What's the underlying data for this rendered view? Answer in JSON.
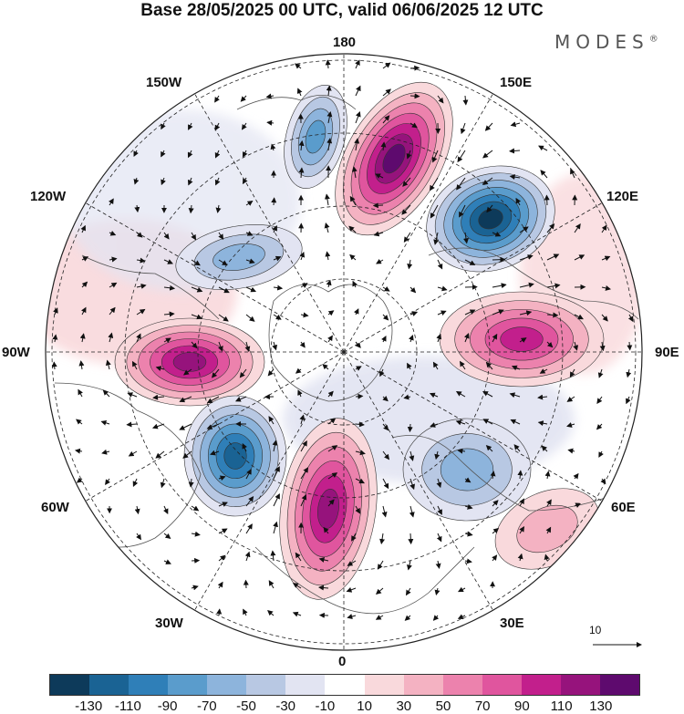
{
  "title": "Base 28/05/2025 00 UTC, valid 06/06/2025 12 UTC",
  "brand": "MODES",
  "brand_mark": "®",
  "longitude_labels": {
    "lon_180": "180",
    "lon_150E": "150E",
    "lon_120E": "120E",
    "lon_90E": "90E",
    "lon_60E": "60E",
    "lon_30E": "30E",
    "lon_0": "0",
    "lon_30W": "30W",
    "lon_60W": "60W",
    "lon_90W": "90W",
    "lon_120W": "120W",
    "lon_150W": "150W"
  },
  "reference_vector": {
    "label": "10"
  },
  "colorbar": {
    "colors": [
      "#0d3a5a",
      "#1a6394",
      "#2f7fb8",
      "#5a9ccc",
      "#8db4dc",
      "#b8c8e3",
      "#e2e4f2",
      "#ffffff",
      "#f9d9dc",
      "#f4b2c2",
      "#ec82ad",
      "#e0559e",
      "#c21f8c",
      "#96137c",
      "#5e0a6e"
    ],
    "ticks": [
      "-130",
      "-110",
      "-90",
      "-70",
      "-50",
      "-30",
      "-10",
      "10",
      "30",
      "50",
      "70",
      "90",
      "110",
      "130"
    ]
  },
  "anomaly_centers": [
    {
      "label": "positive-anomaly-pacific-north",
      "value": 130
    },
    {
      "label": "negative-anomaly-east-siberia",
      "value": -130
    },
    {
      "label": "positive-anomaly-central-siberia",
      "value": 90
    },
    {
      "label": "positive-anomaly-hudson-bay",
      "value": 110
    },
    {
      "label": "negative-anomaly-labrador",
      "value": -110
    },
    {
      "label": "positive-anomaly-north-atlantic",
      "value": 110
    },
    {
      "label": "negative-anomaly-scandinavia",
      "value": -50
    },
    {
      "label": "negative-anomaly-alaska",
      "value": -70
    },
    {
      "label": "negative-anomaly-canada-west",
      "value": -50
    },
    {
      "label": "positive-anomaly-caspian",
      "value": 30
    }
  ]
}
